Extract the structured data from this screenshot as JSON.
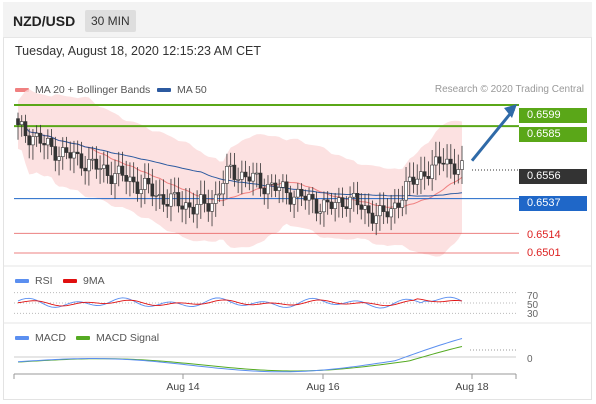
{
  "header": {
    "pair": "NZD/USD",
    "timeframe": "30 MIN"
  },
  "datetime": "Tuesday, August 18, 2020 12:15:23 AM CET",
  "legend": {
    "ma20": "MA 20 + Bollinger Bands",
    "ma50": "MA 50",
    "rsi": "RSI",
    "ma9": "9MA",
    "macd": "MACD",
    "macd_signal": "MACD Signal"
  },
  "credit": "Research © 2020 Trading Central",
  "colors": {
    "ma20": "#f08080",
    "ma50": "#2c5aa0",
    "band_fill": "#fbd9d9",
    "resistance": "#5aa718",
    "support": "#1f67c8",
    "level_red": "#e44b4b",
    "rsi": "#5b8ff0",
    "ma9": "#e01010",
    "macd": "#5b8ff0",
    "macd_signal": "#55aa22",
    "arrow": "#2f6aa8"
  },
  "chart_data": {
    "type": "candlestick",
    "instrument": "NZD/USD",
    "x_ticks": [
      "Aug 14",
      "Aug 16",
      "Aug 18"
    ],
    "ylim": [
      0.6495,
      0.6605
    ],
    "levels": [
      {
        "value": "0.6599",
        "kind": "resistance"
      },
      {
        "value": "0.6585",
        "kind": "resistance"
      },
      {
        "value": "0.6556",
        "kind": "last-price"
      },
      {
        "value": "0.6537",
        "kind": "support"
      },
      {
        "value": "0.6514",
        "kind": "plain"
      },
      {
        "value": "0.6501",
        "kind": "plain"
      }
    ],
    "price_path": [
      0.6583,
      0.658,
      0.6578,
      0.6572,
      0.657,
      0.6567,
      0.6565,
      0.6563,
      0.656,
      0.6557,
      0.6555,
      0.6553,
      0.6551,
      0.6548,
      0.6545,
      0.6542,
      0.6538,
      0.6536,
      0.6534,
      0.6533,
      0.6531,
      0.6533,
      0.6535,
      0.6547,
      0.6556,
      0.6553,
      0.6551,
      0.6548,
      0.6546,
      0.6544,
      0.6542,
      0.654,
      0.6538,
      0.6535,
      0.6533,
      0.6531,
      0.6534,
      0.6537,
      0.6534,
      0.653,
      0.6527,
      0.6525,
      0.653,
      0.6537,
      0.6545,
      0.6553,
      0.6554,
      0.6557,
      0.6566,
      0.6557,
      0.6555
    ],
    "rsi_levels": [
      "70",
      "50",
      "30"
    ],
    "macd_levels": [
      "0"
    ],
    "projection": "upward arrow toward 0.6599"
  }
}
